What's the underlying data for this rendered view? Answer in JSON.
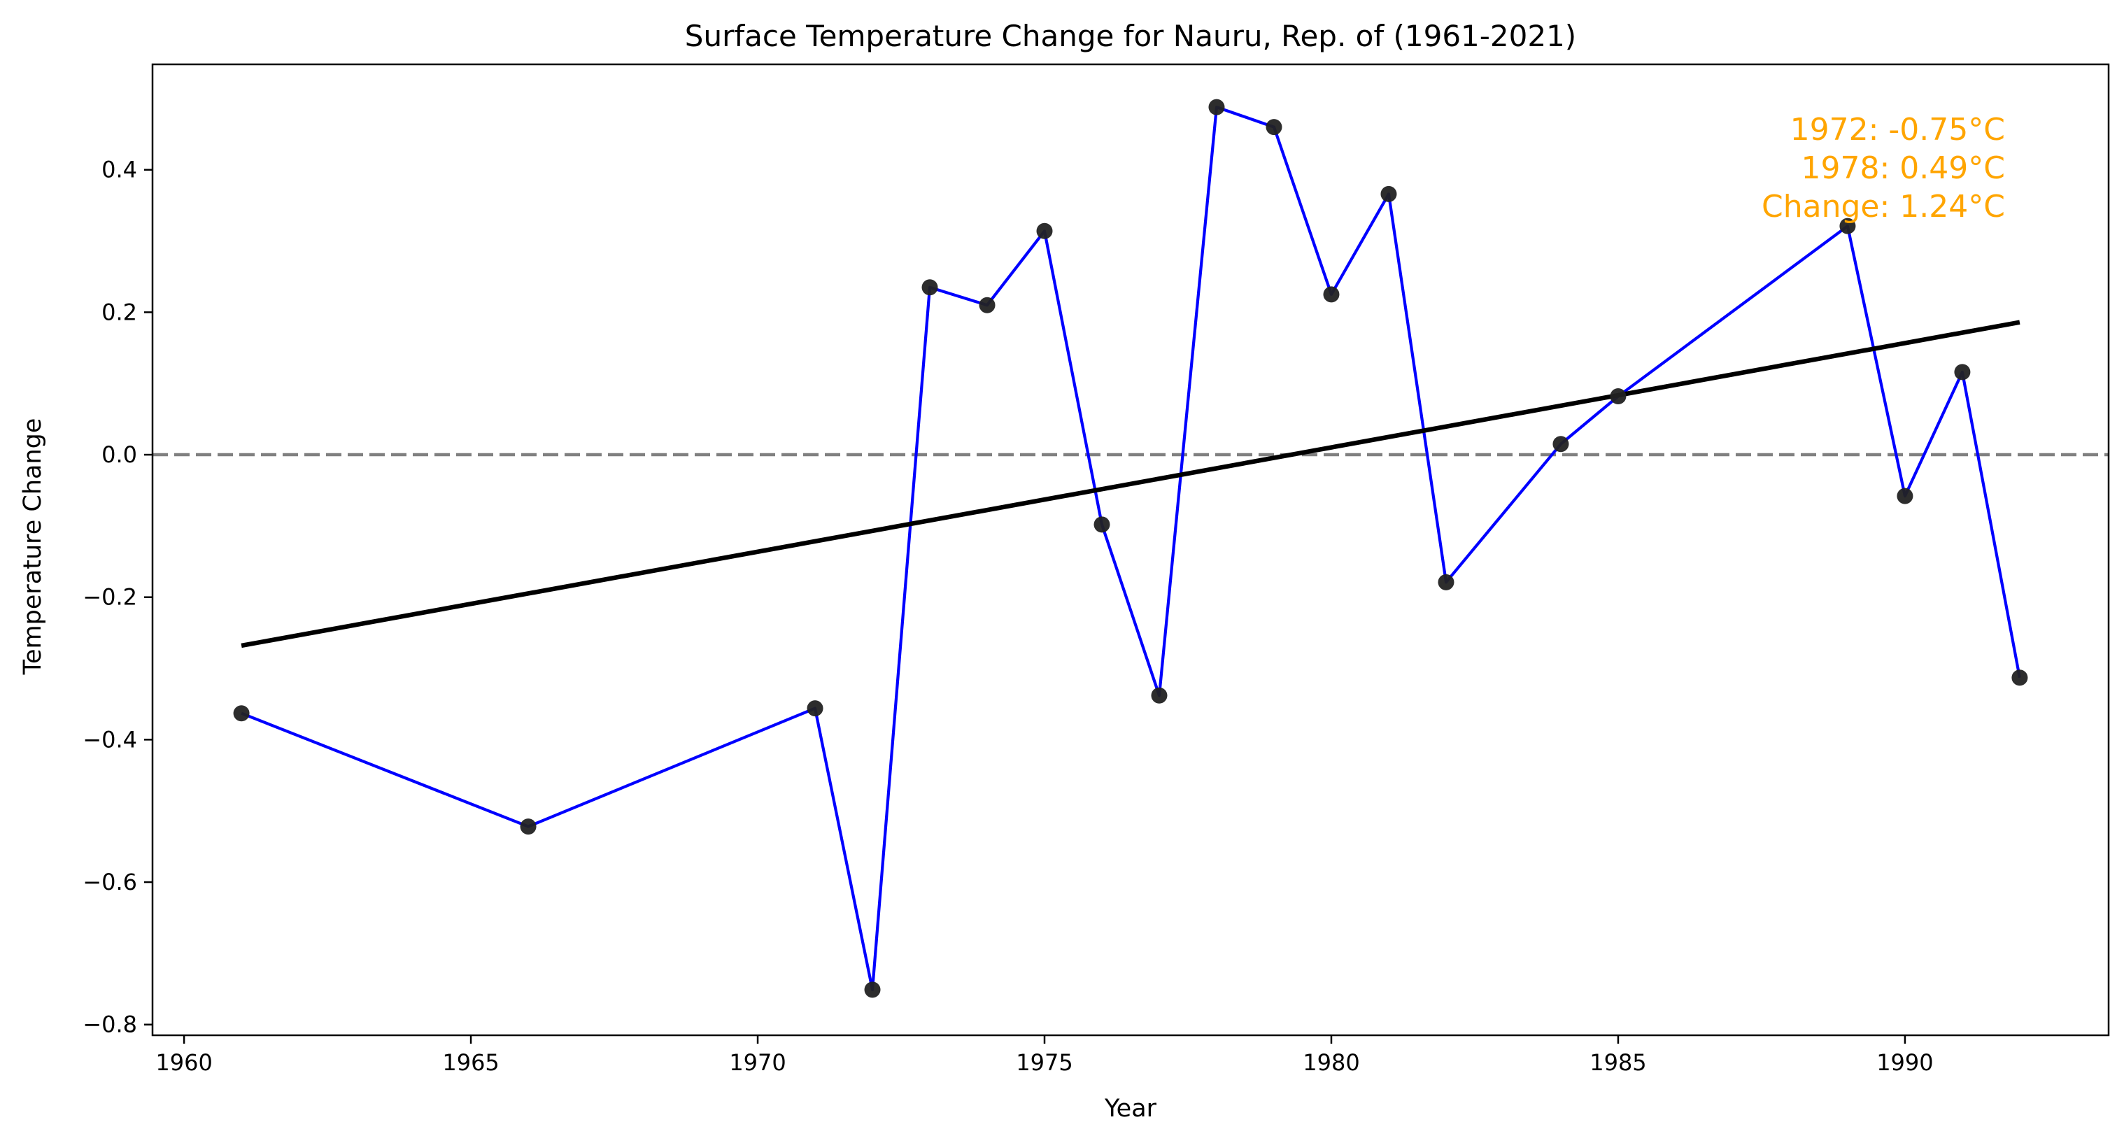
{
  "chart_data": {
    "type": "line",
    "title": "Surface Temperature Change for Nauru, Rep. of (1961-2021)",
    "xlabel": "Year",
    "ylabel": "Temperature Change",
    "xlim": [
      1959.45,
      1993.55
    ],
    "ylim": [
      -0.815,
      0.548
    ],
    "xticks": [
      1960,
      1965,
      1970,
      1975,
      1980,
      1985,
      1990
    ],
    "yticks": [
      -0.8,
      -0.6,
      -0.4,
      -0.2,
      0.0,
      0.2,
      0.4
    ],
    "ytick_labels": [
      "−0.8",
      "−0.6",
      "−0.4",
      "−0.2",
      "0.0",
      "0.2",
      "0.4"
    ],
    "grid": false,
    "series": [
      {
        "x": [
          1961,
          1966,
          1971,
          1972,
          1973,
          1974,
          1975,
          1976,
          1977,
          1978,
          1979,
          1980,
          1981,
          1982,
          1984,
          1985,
          1989,
          1990,
          1991,
          1992
        ],
        "values": [
          -0.363,
          -0.522,
          -0.356,
          -0.751,
          0.235,
          0.21,
          0.314,
          -0.098,
          -0.338,
          0.488,
          0.46,
          0.225,
          0.366,
          -0.179,
          0.015,
          0.082,
          0.321,
          -0.058,
          0.116,
          -0.313
        ],
        "color": "#0000ff",
        "marker_color": "#222222"
      }
    ],
    "trend_line": {
      "x": [
        1961,
        1992
      ],
      "y": [
        -0.268,
        0.186
      ],
      "color": "#000000"
    },
    "reference_line": {
      "y": 0.0,
      "style": "dashed",
      "color": "#808080"
    },
    "annotation": {
      "lines": [
        "1972: -0.75°C",
        "1978: 0.49°C",
        "Change: 1.24°C"
      ],
      "color": "#ffa500",
      "placement": "top-right"
    }
  }
}
